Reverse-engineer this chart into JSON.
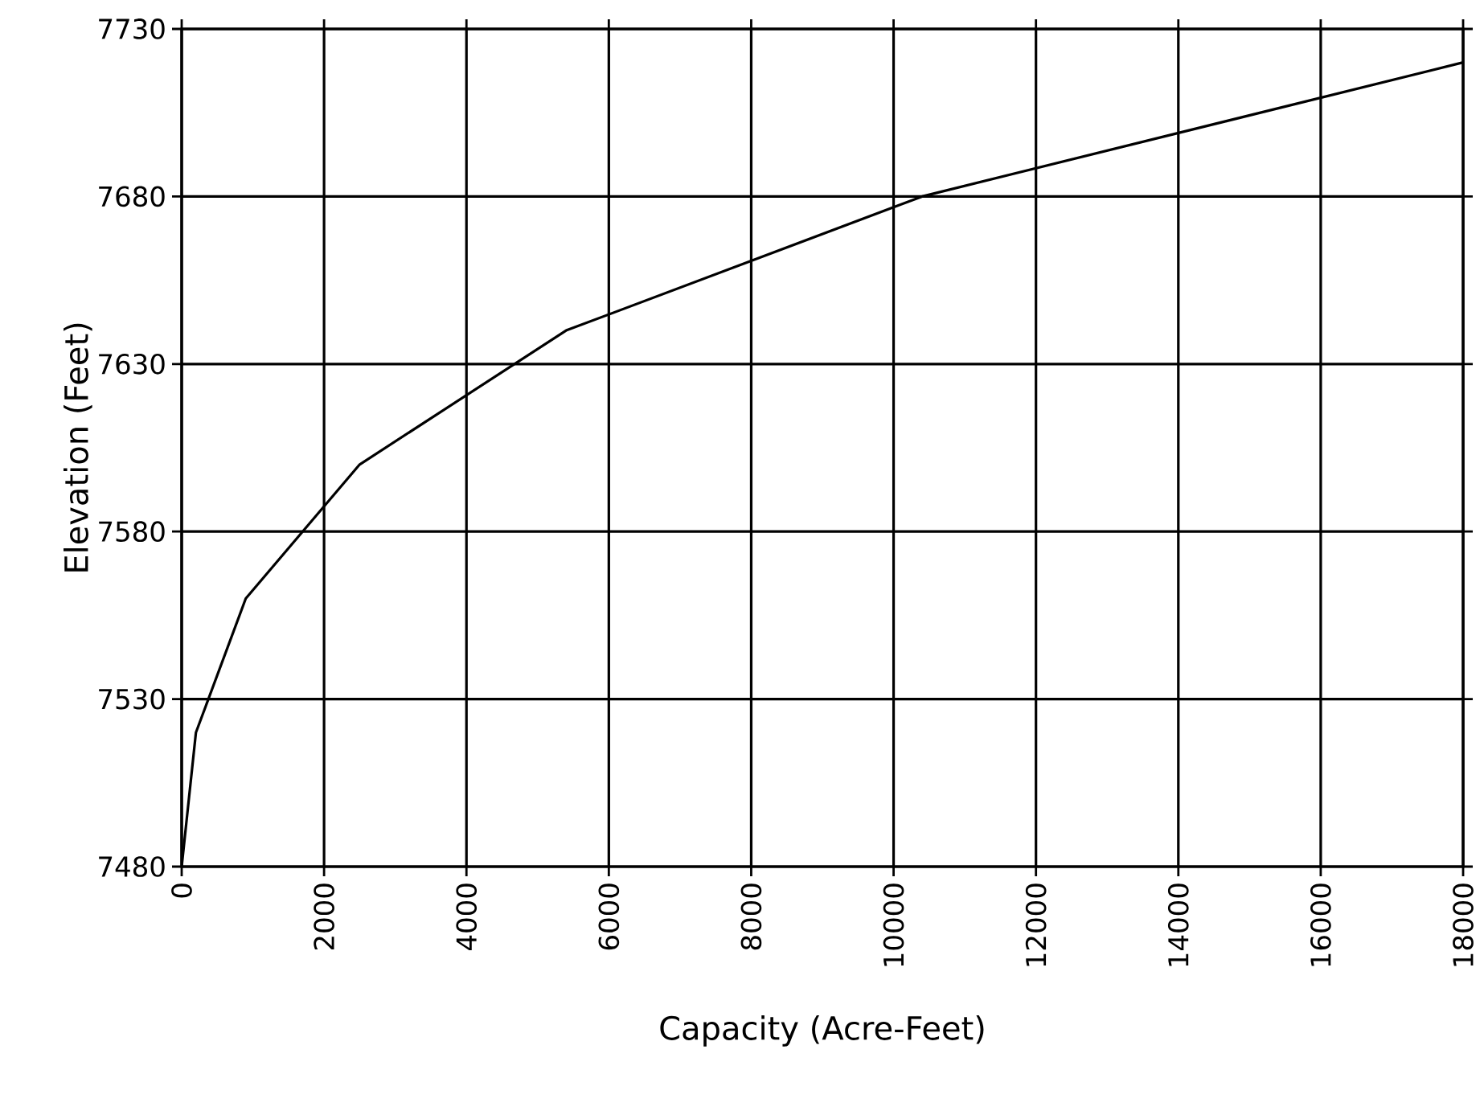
{
  "chart_data": {
    "type": "line",
    "xlabel": "Capacity (Acre-Feet)",
    "ylabel": "Elevation (Feet)",
    "x": [
      0,
      200,
      900,
      2500,
      5400,
      10400,
      18000
    ],
    "values": [
      7480,
      7520,
      7560,
      7600,
      7640,
      7680,
      7720
    ],
    "color": "#000000",
    "xlim": [
      0,
      18000
    ],
    "ylim": [
      7480,
      7730
    ],
    "xticks": [
      0,
      2000,
      4000,
      6000,
      8000,
      10000,
      12000,
      14000,
      16000,
      18000
    ],
    "yticks": [
      7480,
      7530,
      7580,
      7630,
      7680,
      7730
    ],
    "grid": true,
    "marker": "none",
    "line_style": "solid"
  }
}
